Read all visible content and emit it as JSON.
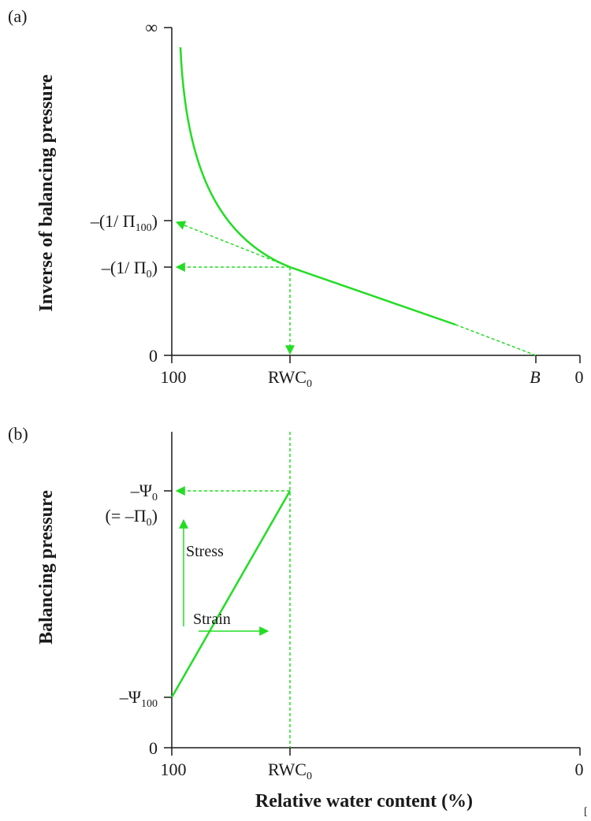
{
  "colors": {
    "curve": "#22dd22",
    "axis": "#1a1a1a"
  },
  "panel_a": {
    "tag": "(a)",
    "ylabel": "Inverse of balancing pressure",
    "y_ticks": {
      "inf": "∞",
      "inv_pi100": "–(1/ Π",
      "inv_pi100_sub": "100",
      "inv_pi100_close": ")",
      "inv_pi0": "–(1/ Π",
      "inv_pi0_sub": "0",
      "inv_pi0_close": ")",
      "zero": "0"
    },
    "x_ticks": {
      "left": "100",
      "rwc": "RWC",
      "rwc_sub": "0",
      "b": "B",
      "right": "0"
    }
  },
  "panel_b": {
    "tag": "(b)",
    "ylabel": "Balancing pressure",
    "y_ticks": {
      "psi0": "–Ψ",
      "psi0_sub": "0",
      "psi0_note": "(= –Π",
      "psi0_note_sub": "0",
      "psi0_note_close": ")",
      "psi100": "–Ψ",
      "psi100_sub": "100",
      "zero": "0"
    },
    "x_ticks": {
      "left": "100",
      "rwc": "RWC",
      "rwc_sub": "0",
      "right": "0"
    },
    "annotations": {
      "stress": "Stress",
      "strain": "Strain"
    },
    "xlabel": "Relative water content (%)"
  },
  "corner_mark": "[",
  "chart_data": [
    {
      "type": "line",
      "panel": "a",
      "xlabel": "",
      "ylabel": "Inverse of balancing pressure",
      "x_axis": "Relative water content (%), decreasing from 100 (left) to 0 (right)",
      "x_ticks": [
        "100",
        "RWC0",
        "B",
        "0"
      ],
      "y_ticks": [
        "0",
        "–(1/Π0)",
        "–(1/Π100)",
        "∞"
      ],
      "series": [
        {
          "values_description": "hyperbolic curve from near ∞ at RWC≈100 down to –(1/Π0) at RWC0, then linear decrease to 0 at B; linear part extrapolated (dashed) back to –(1/Π100) at RWC 100"
        }
      ]
    },
    {
      "type": "line",
      "panel": "b",
      "xlabel": "Relative water content (%)",
      "ylabel": "Balancing pressure",
      "x_ticks": [
        "100",
        "RWC0",
        "0"
      ],
      "y_ticks": [
        "0",
        "–Ψ100",
        "–Ψ0 (= –Π0)"
      ],
      "series": [
        {
          "points": [
            [
              "100",
              "–Ψ100"
            ],
            [
              "RWC0",
              "–Ψ0"
            ]
          ]
        }
      ],
      "annotations": [
        "Stress",
        "Strain"
      ]
    }
  ]
}
